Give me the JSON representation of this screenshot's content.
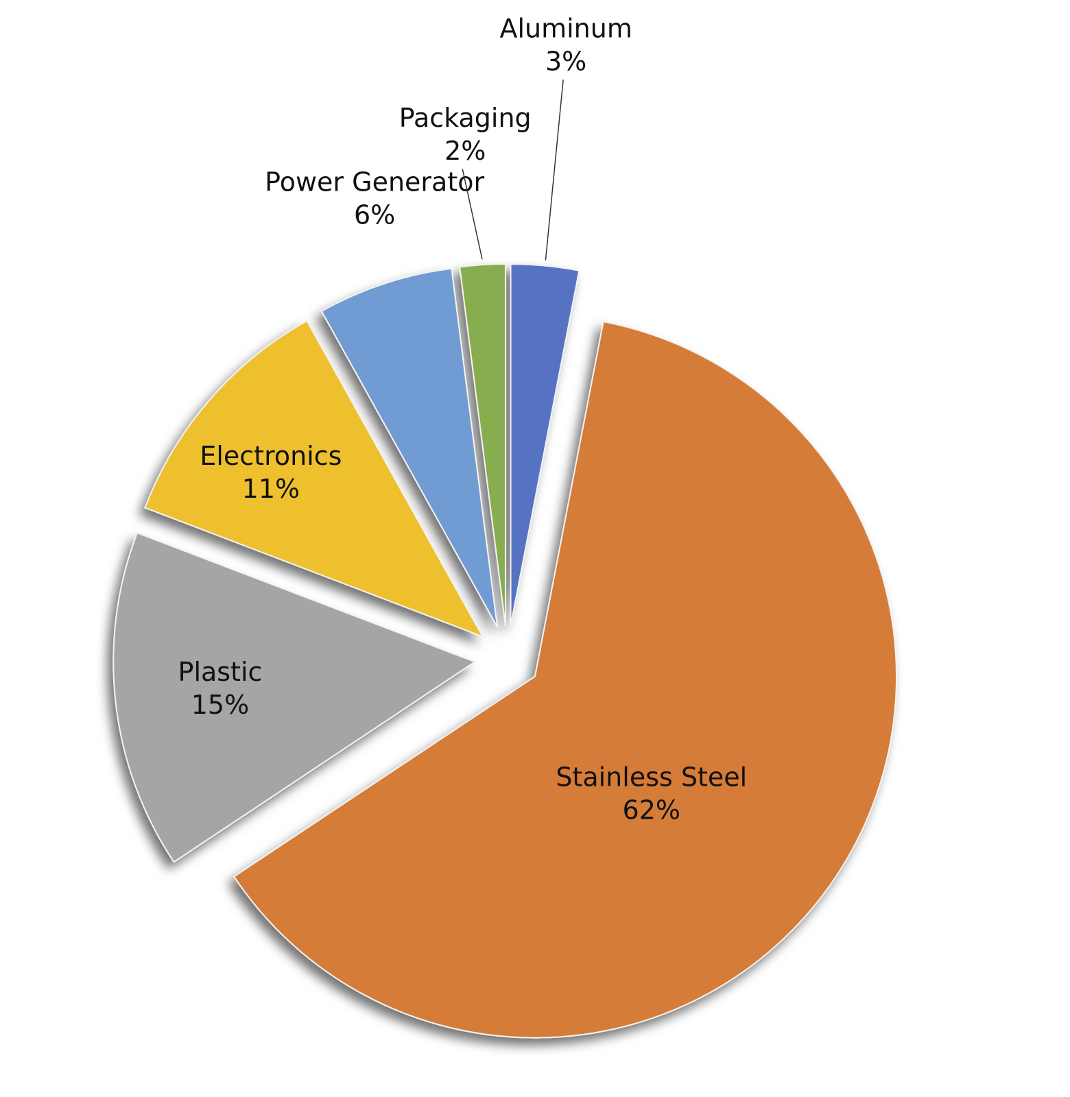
{
  "chart_data": {
    "type": "pie",
    "categories": [
      "Aluminum",
      "Stainless Steel",
      "Plastic",
      "Electronics",
      "Power Generator",
      "Packaging"
    ],
    "values": [
      3,
      62,
      15,
      11,
      6,
      2
    ],
    "value_labels": [
      "3%",
      "62%",
      "15%",
      "11%",
      "6%",
      "2%"
    ],
    "colors": [
      "#5572c3",
      "#d57b38",
      "#a5a5a5",
      "#eec02d",
      "#719bd3",
      "#87ad4f"
    ]
  }
}
